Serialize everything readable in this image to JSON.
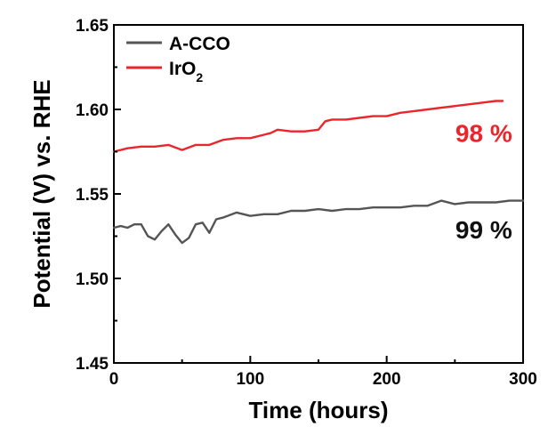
{
  "chart_data": {
    "type": "line",
    "xlabel": "Time (hours)",
    "ylabel": "Potential (V) vs. RHE",
    "xlim": [
      0,
      300
    ],
    "ylim": [
      1.45,
      1.65
    ],
    "xticks": [
      "0",
      "100",
      "200",
      "300"
    ],
    "yticks": [
      "1.45",
      "1.50",
      "1.55",
      "1.60",
      "1.65"
    ],
    "grid": false,
    "legend_position": "top-left",
    "series": [
      {
        "name": "A-CCO",
        "name_parts": {
          "text": "A-CCO",
          "sub": ""
        },
        "color": "#555555",
        "x": [
          0,
          5,
          10,
          15,
          20,
          25,
          30,
          35,
          40,
          45,
          50,
          55,
          60,
          65,
          70,
          75,
          80,
          90,
          100,
          110,
          120,
          130,
          140,
          150,
          160,
          170,
          180,
          190,
          200,
          210,
          220,
          230,
          240,
          250,
          260,
          270,
          280,
          290,
          300
        ],
        "y": [
          1.53,
          1.531,
          1.53,
          1.532,
          1.532,
          1.525,
          1.523,
          1.528,
          1.532,
          1.526,
          1.521,
          1.524,
          1.532,
          1.533,
          1.527,
          1.535,
          1.536,
          1.539,
          1.537,
          1.538,
          1.538,
          1.54,
          1.54,
          1.541,
          1.54,
          1.541,
          1.541,
          1.542,
          1.542,
          1.542,
          1.543,
          1.543,
          1.546,
          1.544,
          1.545,
          1.545,
          1.545,
          1.546,
          1.546
        ]
      },
      {
        "name": "IrO2",
        "name_parts": {
          "text": "IrO",
          "sub": "2"
        },
        "color": "#e8262b",
        "x": [
          0,
          10,
          20,
          30,
          40,
          50,
          60,
          70,
          80,
          90,
          100,
          110,
          115,
          120,
          130,
          140,
          150,
          155,
          160,
          170,
          180,
          190,
          200,
          210,
          220,
          230,
          240,
          250,
          260,
          270,
          280,
          285
        ],
        "y": [
          1.575,
          1.577,
          1.578,
          1.578,
          1.579,
          1.576,
          1.579,
          1.579,
          1.582,
          1.583,
          1.583,
          1.585,
          1.586,
          1.588,
          1.587,
          1.587,
          1.588,
          1.593,
          1.594,
          1.594,
          1.595,
          1.596,
          1.596,
          1.598,
          1.599,
          1.6,
          1.601,
          1.602,
          1.603,
          1.604,
          1.605,
          1.605
        ]
      }
    ],
    "annotations": [
      {
        "text": "98 %",
        "color": "#e8262b",
        "x": 292,
        "y": 1.586
      },
      {
        "text": "99 %",
        "color": "#111111",
        "x": 292,
        "y": 1.529
      }
    ]
  }
}
